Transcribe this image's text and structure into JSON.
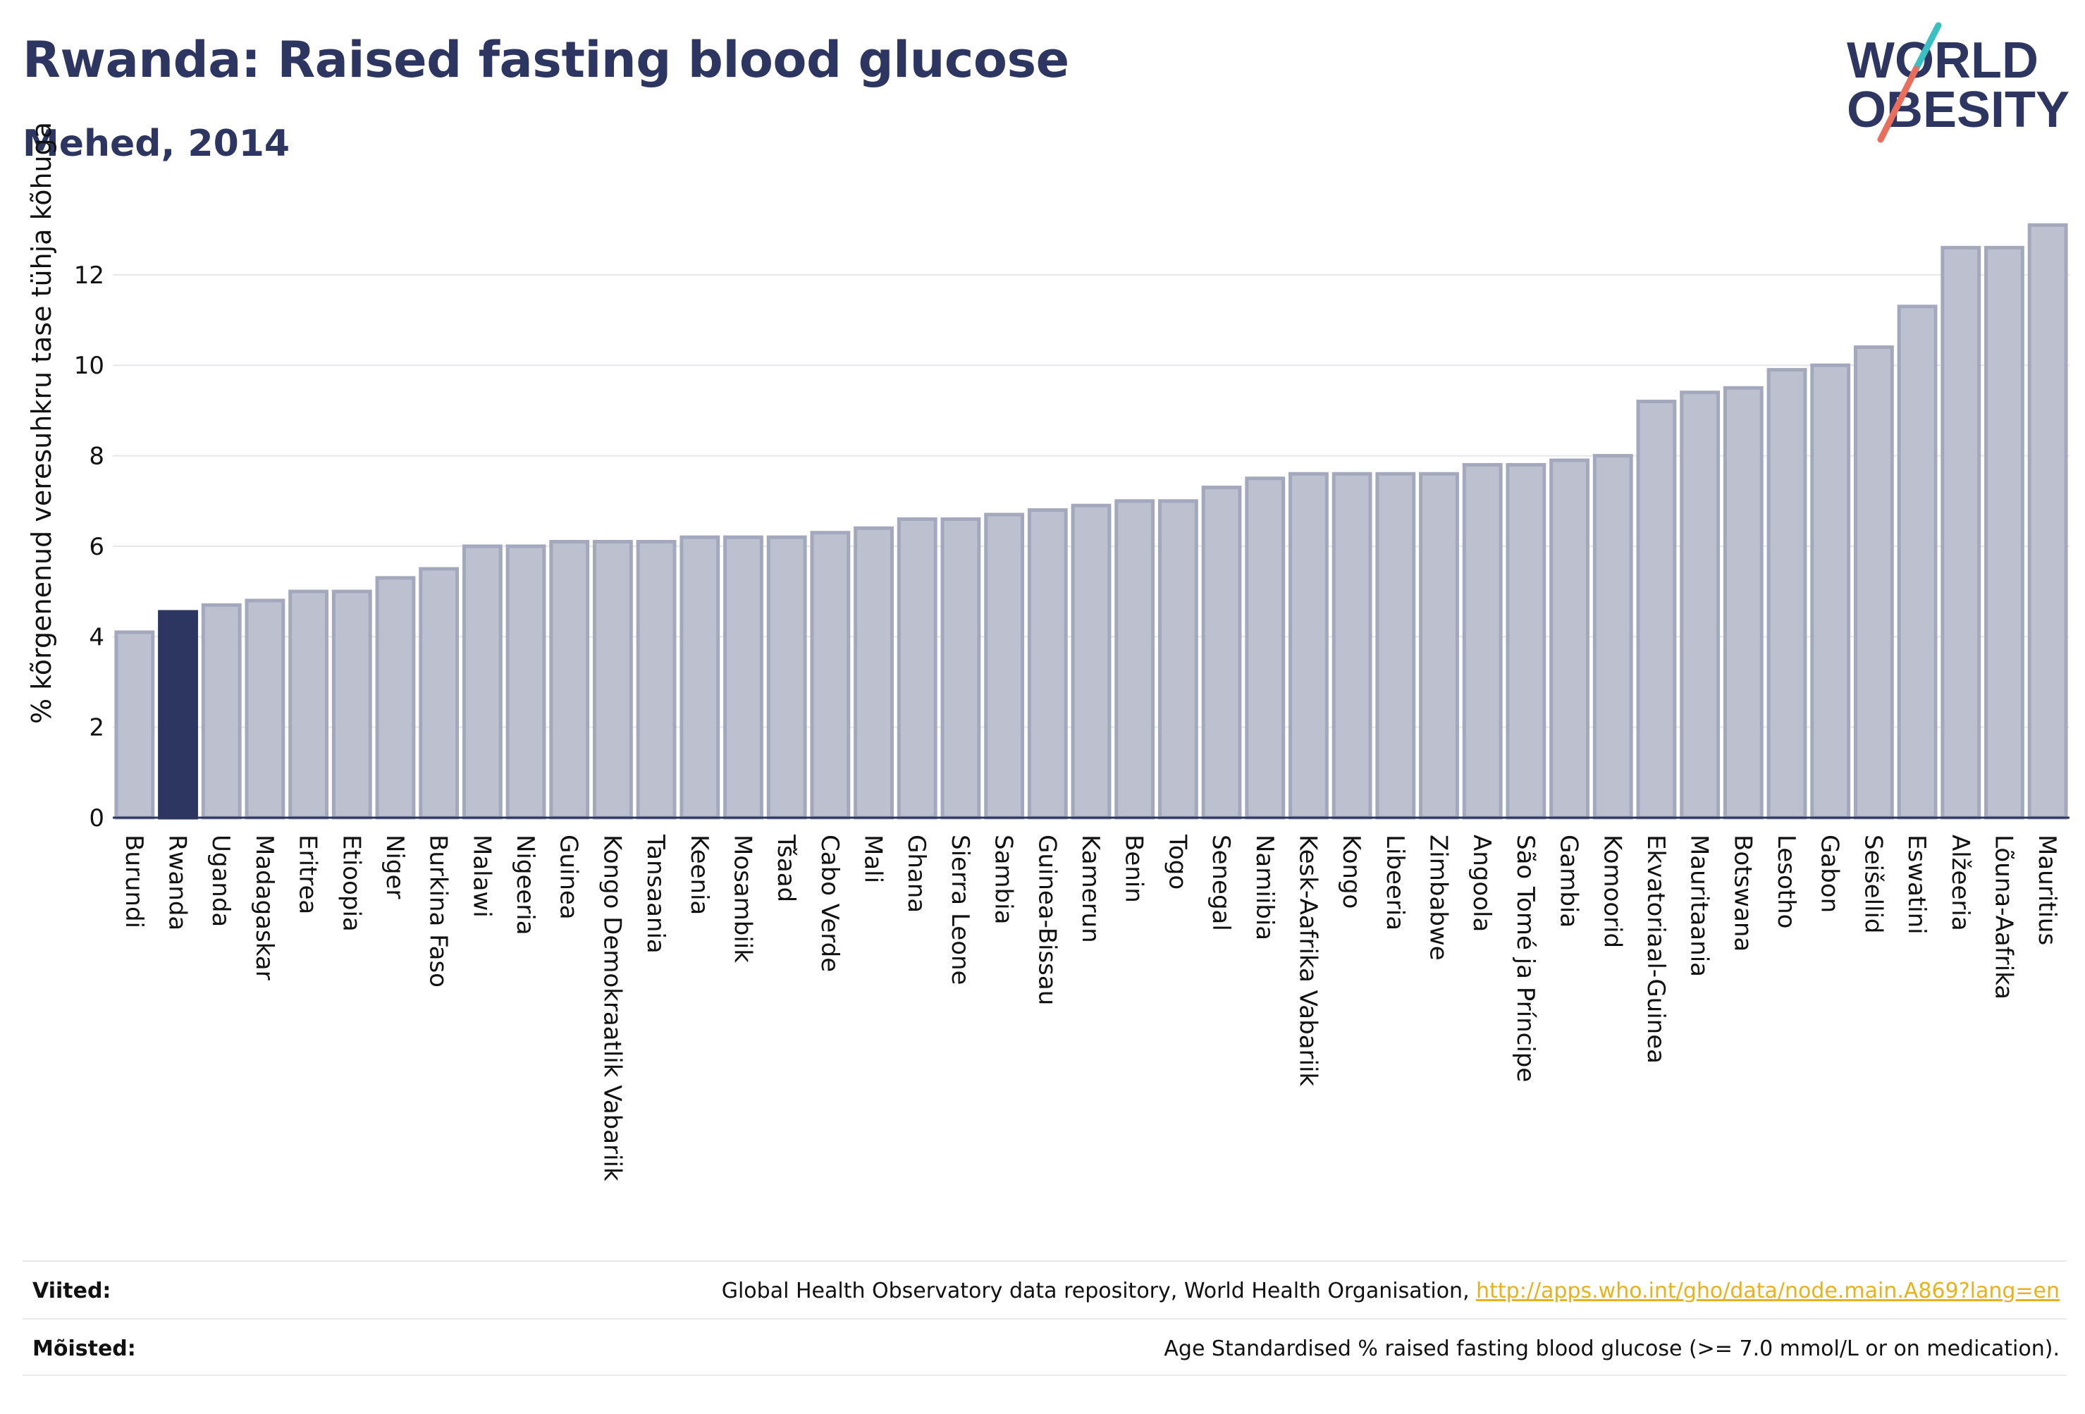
{
  "header": {
    "title": "Rwanda: Raised fasting blood glucose",
    "subtitle": "Mehed, 2014"
  },
  "logo": {
    "line1": "WORLD",
    "line2": "OBESITY"
  },
  "colors": {
    "bar": "#bcc0cf",
    "bar_stroke": "#a3a8bd",
    "highlight": "#2d3661",
    "title": "#2d3661",
    "grid": "#e6e6ea",
    "logo_teal": "#3bbfc1",
    "logo_coral": "#e86f5d",
    "link": "#e8b21c"
  },
  "chart_data": {
    "type": "bar",
    "ylabel": "% kõrgenenud veresuhkru tase tühja kõhuga",
    "ylim": [
      0,
      13.4
    ],
    "yticks": [
      0,
      2,
      4,
      6,
      8,
      10,
      12
    ],
    "highlight": "Rwanda",
    "grid": true,
    "categories": [
      "Burundi",
      "Rwanda",
      "Uganda",
      "Madagaskar",
      "Eritrea",
      "Etioopia",
      "Niger",
      "Burkina Faso",
      "Malawi",
      "Nigeeria",
      "Guinea",
      "Kongo Demokraatlik Vabariik",
      "Tansaania",
      "Keenia",
      "Mosambiik",
      "Tšaad",
      "Cabo Verde",
      "Mali",
      "Ghana",
      "Sierra Leone",
      "Sambia",
      "Guinea-Bissau",
      "Kamerun",
      "Benin",
      "Togo",
      "Senegal",
      "Namiibia",
      "Kesk-Aafrika Vabariik",
      "Kongo",
      "Libeeria",
      "Zimbabwe",
      "Angoola",
      "São Tomé ja Príncipe",
      "Gambia",
      "Komoorid",
      "Ekvatoriaal-Guinea",
      "Mauritaania",
      "Botswana",
      "Lesotho",
      "Gabon",
      "Seišellid",
      "Eswatini",
      "Alžeeria",
      "Lõuna-Aafrika",
      "Mauritius"
    ],
    "values": [
      4.1,
      4.55,
      4.7,
      4.8,
      5.0,
      5.0,
      5.3,
      5.5,
      6.0,
      6.0,
      6.1,
      6.1,
      6.1,
      6.2,
      6.2,
      6.2,
      6.3,
      6.4,
      6.6,
      6.6,
      6.7,
      6.8,
      6.9,
      7.0,
      7.0,
      7.3,
      7.5,
      7.6,
      7.6,
      7.6,
      7.6,
      7.8,
      7.8,
      7.9,
      8.0,
      9.2,
      9.4,
      9.5,
      9.9,
      10.0,
      10.4,
      11.3,
      12.6,
      12.6,
      13.1
    ]
  },
  "footer": {
    "sources_label": "Viited:",
    "sources_text": "Global Health Observatory data repository, World Health Organisation, ",
    "sources_link": "http://apps.who.int/gho/data/node.main.A869?lang=en",
    "definitions_label": "Mõisted:",
    "definitions_text": "Age Standardised % raised fasting blood glucose (>= 7.0 mmol/L or on medication)."
  }
}
